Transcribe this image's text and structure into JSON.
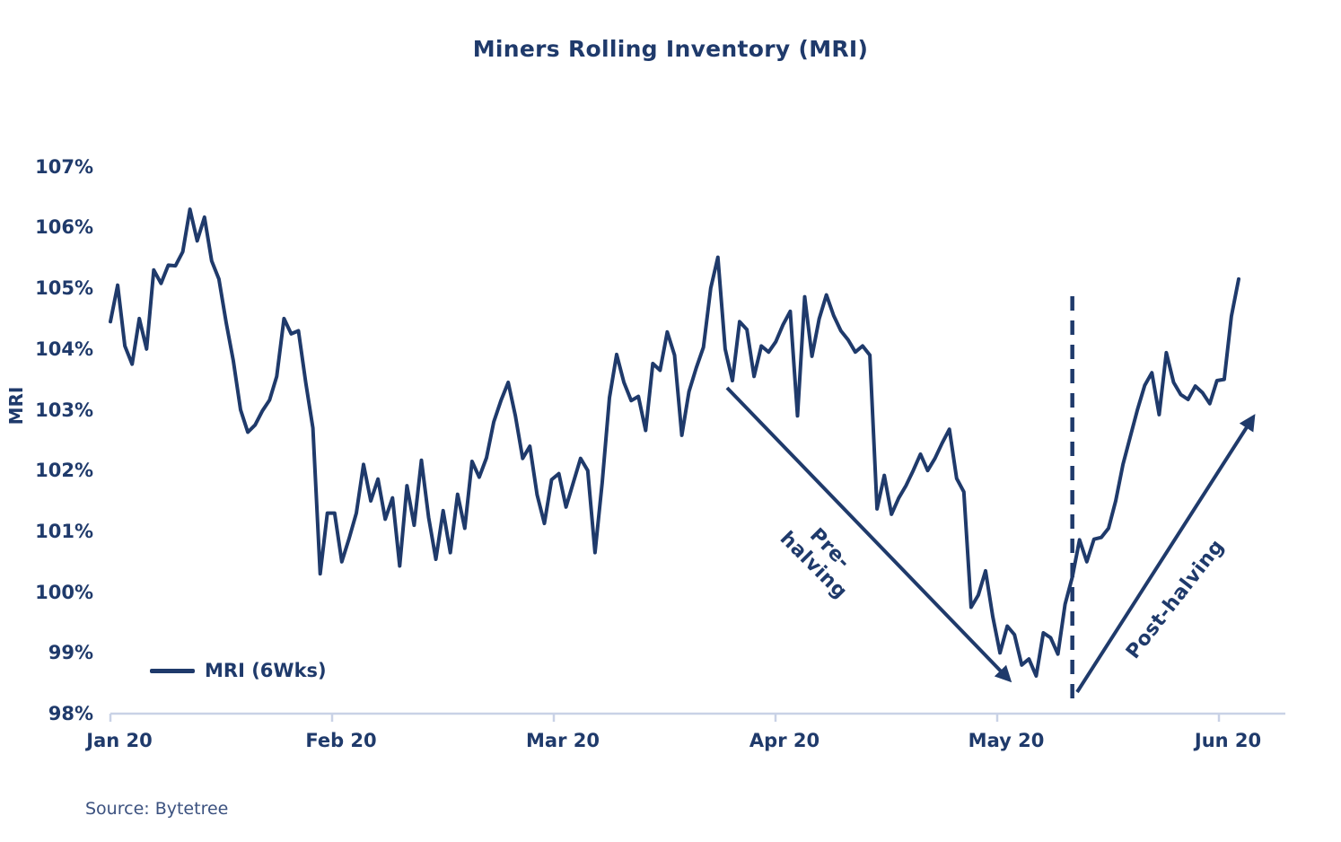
{
  "title": "Miners Rolling Inventory (MRI)",
  "source": "Source: Bytetree",
  "colors": {
    "navy": "#1f3a6b",
    "source_text": "#3b517f",
    "axis": "#c9d2e6",
    "background": "#ffffff"
  },
  "legend": {
    "label": "MRI (6Wks)"
  },
  "annotations": {
    "pre_halving": {
      "line1": "Pre-",
      "line2": "halving"
    },
    "post_halving": {
      "label": "Post-halving"
    }
  },
  "chart_data": {
    "type": "line",
    "title": "Miners Rolling Inventory (MRI)",
    "ylabel": "MRI",
    "xlabel": "",
    "ylim": [
      98,
      107
    ],
    "grid": false,
    "legend_position": "lower left",
    "y_ticks": [
      "107%",
      "106%",
      "105%",
      "104%",
      "103%",
      "102%",
      "101%",
      "100%",
      "99%",
      "98%"
    ],
    "x_ticks": [
      "Jan 20",
      "Feb 20",
      "Mar 20",
      "Apr 20",
      "May 20",
      "Jun 20"
    ],
    "series": [
      {
        "name": "MRI (6Wks)",
        "sampling": "daily, Jan 1 2020 through early Jun 2020",
        "unit": "%",
        "values": [
          104.45,
          105.05,
          104.05,
          103.75,
          104.5,
          104.0,
          105.3,
          105.08,
          105.38,
          105.37,
          105.6,
          106.3,
          105.78,
          106.17,
          105.45,
          105.15,
          104.44,
          103.8,
          103.0,
          102.63,
          102.75,
          102.98,
          103.16,
          103.55,
          104.5,
          104.25,
          104.3,
          103.45,
          102.7,
          100.3,
          101.3,
          101.3,
          100.5,
          100.88,
          101.3,
          102.1,
          101.5,
          101.86,
          101.2,
          101.55,
          100.43,
          101.75,
          101.1,
          102.17,
          101.23,
          100.54,
          101.34,
          100.65,
          101.61,
          101.05,
          102.15,
          101.89,
          102.21,
          102.8,
          103.15,
          103.45,
          102.9,
          102.2,
          102.4,
          101.6,
          101.13,
          101.85,
          101.95,
          101.4,
          101.8,
          102.2,
          102.0,
          100.65,
          101.8,
          103.2,
          103.91,
          103.45,
          103.15,
          103.22,
          102.66,
          103.76,
          103.65,
          104.28,
          103.9,
          102.58,
          103.3,
          103.69,
          104.03,
          105.0,
          105.51,
          104.0,
          103.48,
          104.45,
          104.32,
          103.55,
          104.05,
          103.95,
          104.12,
          104.4,
          104.62,
          102.9,
          104.86,
          103.88,
          104.5,
          104.89,
          104.55,
          104.3,
          104.15,
          103.95,
          104.05,
          103.9,
          101.37,
          101.92,
          101.28,
          101.55,
          101.75,
          102.0,
          102.27,
          102.0,
          102.2,
          102.45,
          102.68,
          101.87,
          101.65,
          99.75,
          99.95,
          100.35,
          99.6,
          99.0,
          99.44,
          99.3,
          98.8,
          98.9,
          98.62,
          99.33,
          99.25,
          98.98,
          99.8,
          100.25,
          100.86,
          100.5,
          100.87,
          100.9,
          101.05,
          101.5,
          102.1,
          102.55,
          103.0,
          103.4,
          103.61,
          102.92,
          103.94,
          103.45,
          103.25,
          103.17,
          103.39,
          103.28,
          103.1,
          103.48,
          103.5,
          104.54,
          105.15
        ]
      }
    ],
    "events": {
      "halving_dashed_line_index": 133
    }
  }
}
